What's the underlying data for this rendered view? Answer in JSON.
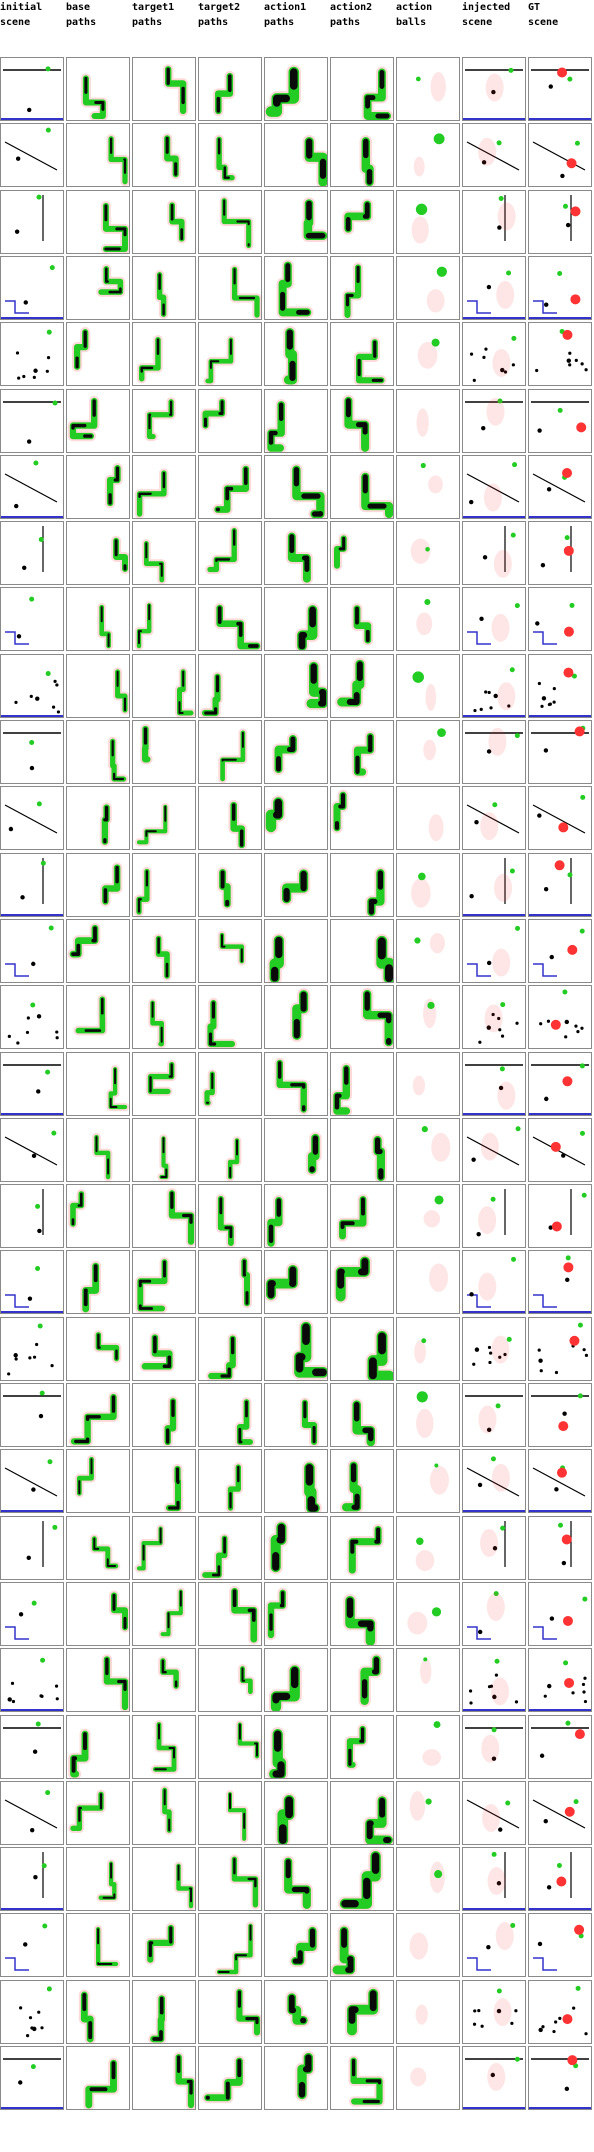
{
  "columns": [
    {
      "key": "initial",
      "label": "initial\nscene"
    },
    {
      "key": "base",
      "label": "base\npaths"
    },
    {
      "key": "target1",
      "label": "target1\npaths"
    },
    {
      "key": "target2",
      "label": "target2\npaths"
    },
    {
      "key": "action1",
      "label": "action1\npaths"
    },
    {
      "key": "action2",
      "label": "action2\npaths"
    },
    {
      "key": "balls",
      "label": "action\nballs"
    },
    {
      "key": "injected",
      "label": "injected\nscene"
    },
    {
      "key": "gt",
      "label": "GT\nscene"
    }
  ],
  "row_count": 31,
  "colors": {
    "border": "#8a8a8a",
    "green": "#22cc22",
    "dark": "#0a0a0a",
    "red": "#ff3333",
    "blue": "#3333cc",
    "black": "#000000"
  }
}
